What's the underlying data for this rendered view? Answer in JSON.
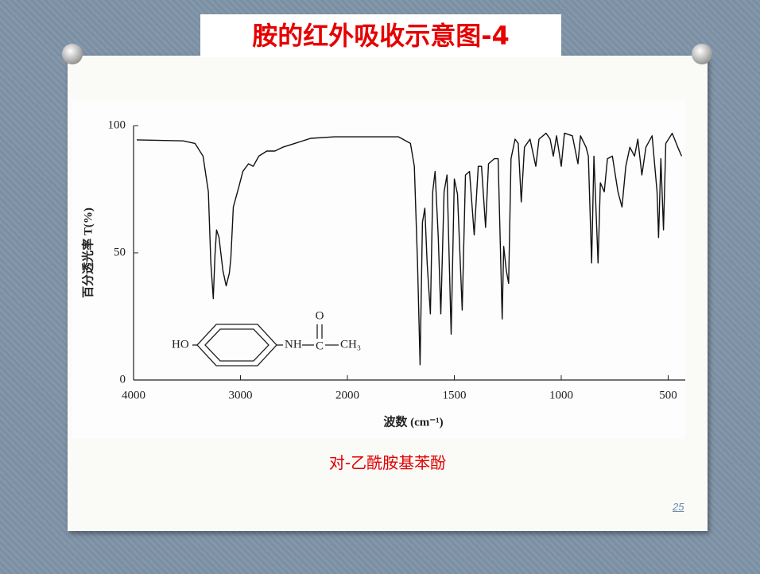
{
  "slide": {
    "title": "胺的红外吸收示意图-4",
    "caption": "对-乙酰胺基苯酚",
    "page_number": "25"
  },
  "chart_data": {
    "type": "line",
    "xlabel": "波数 (cm⁻¹)",
    "ylabel": "百分透光率 T(%)",
    "xlim": [
      4000,
      420
    ],
    "xticks": [
      4000,
      3000,
      2000,
      1500,
      1000,
      500
    ],
    "xscale": "equal-tick-spacing",
    "ylim": [
      0,
      100
    ],
    "yticks": [
      0,
      50,
      100
    ],
    "grid": false,
    "color": "#111111",
    "x": [
      3970,
      3537,
      3425,
      3350,
      3300,
      3277,
      3254,
      3239,
      3224,
      3201,
      3164,
      3134,
      3104,
      3090,
      3067,
      3015,
      2978,
      2925,
      2881,
      2828,
      2754,
      2679,
      2605,
      2493,
      2343,
      2119,
      1873,
      1761,
      1705,
      1687,
      1672,
      1660,
      1649,
      1638,
      1627,
      1612,
      1601,
      1590,
      1575,
      1563,
      1548,
      1534,
      1515,
      1500,
      1485,
      1463,
      1448,
      1429,
      1407,
      1388,
      1373,
      1354,
      1340,
      1313,
      1295,
      1276,
      1269,
      1257,
      1246,
      1235,
      1216,
      1201,
      1187,
      1172,
      1146,
      1119,
      1104,
      1071,
      1052,
      1037,
      1022,
      1000,
      985,
      948,
      922,
      910,
      884,
      873,
      858,
      847,
      828,
      817,
      799,
      784,
      761,
      735,
      716,
      698,
      679,
      657,
      642,
      623,
      604,
      575,
      552,
      545,
      534,
      522,
      511,
      481,
      455,
      437
    ],
    "y": [
      94.4,
      94,
      93,
      88,
      74,
      46,
      32,
      49,
      59,
      56,
      43,
      37,
      42,
      48,
      68,
      76,
      82,
      85,
      84,
      88,
      90,
      90,
      91.5,
      93,
      95,
      95.6,
      95.6,
      95.6,
      93,
      84,
      46,
      6,
      62,
      67.5,
      46,
      26,
      74,
      82,
      56,
      26,
      74,
      80.6,
      18,
      79,
      73,
      27.5,
      80.6,
      82,
      57,
      84,
      84,
      60,
      85,
      87,
      87,
      24,
      52.5,
      43,
      38,
      87,
      94.7,
      93,
      70,
      91.5,
      94.7,
      84,
      94.7,
      97,
      94.7,
      88,
      96,
      84,
      97,
      96,
      85,
      96,
      91.5,
      88,
      46,
      88,
      46,
      77.5,
      74,
      87,
      88,
      74,
      68,
      84,
      91.5,
      88,
      94.7,
      80.6,
      91.5,
      96,
      74,
      56,
      87,
      59,
      93,
      97,
      91.5,
      88
    ],
    "structure": {
      "hydroxyl": "HO",
      "amine": "NH",
      "carbon": "C",
      "oxygen": "O",
      "methyl": "CH₃"
    }
  }
}
